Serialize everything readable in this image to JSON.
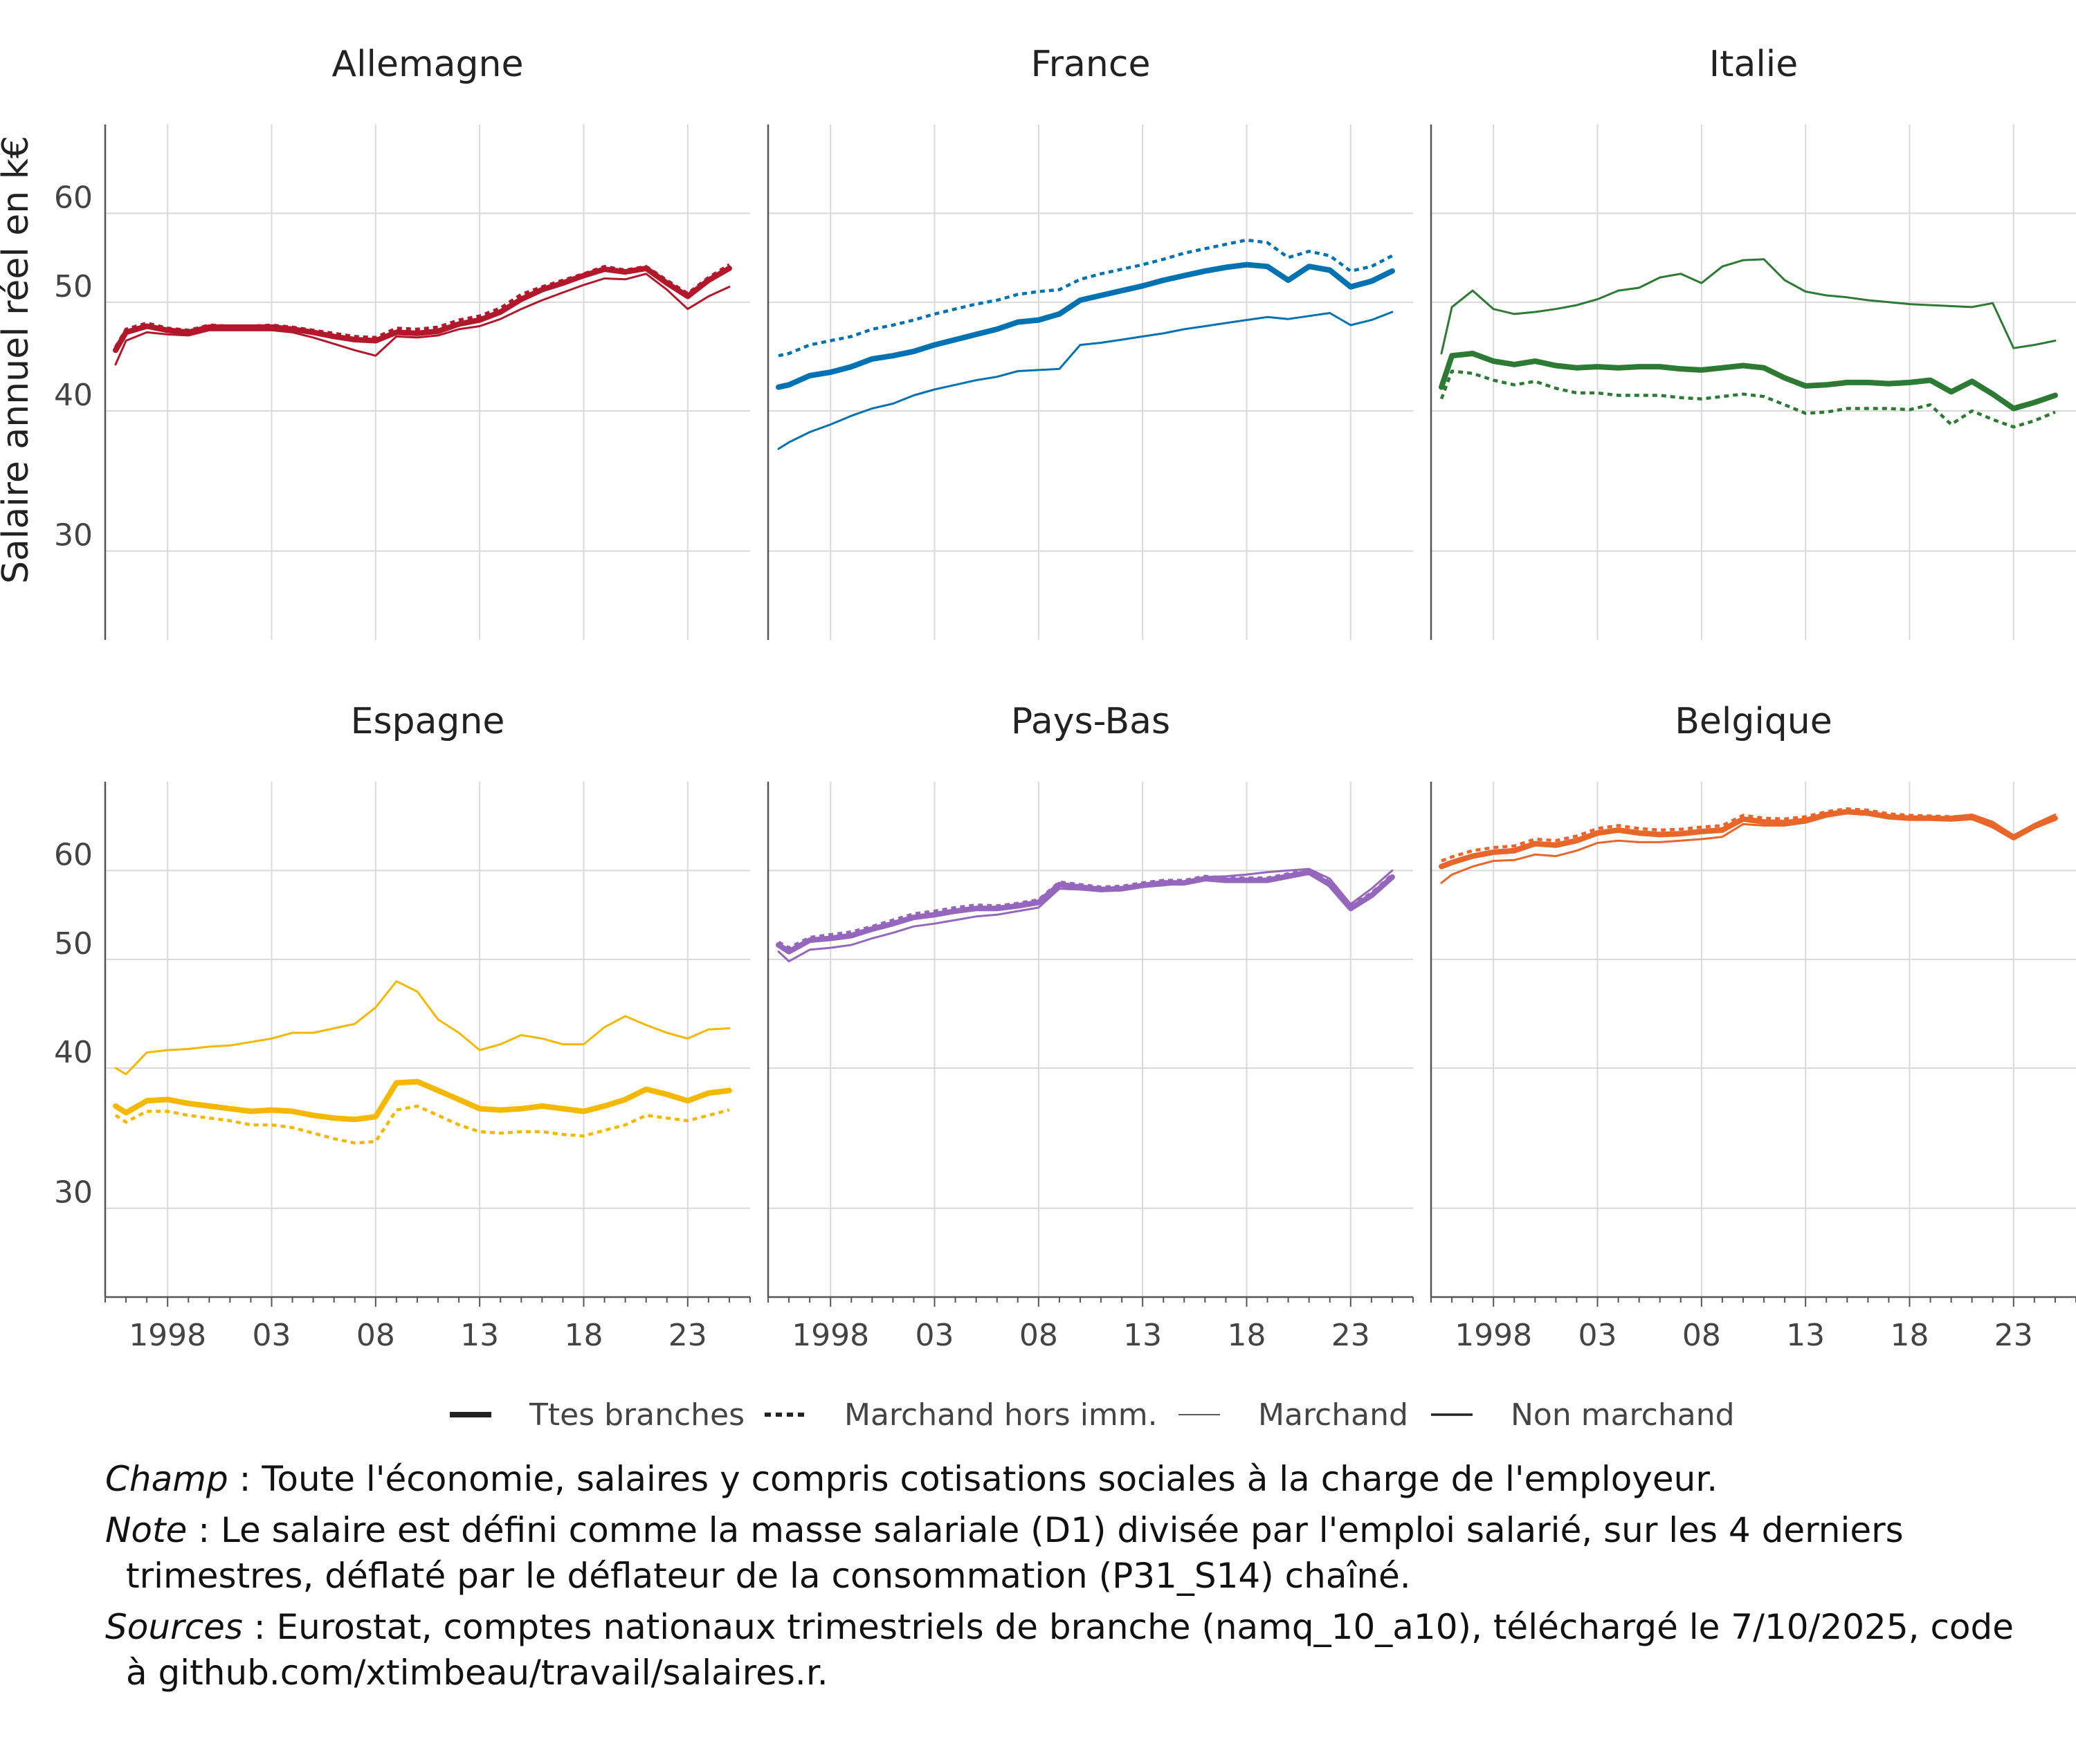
{
  "chart_data": {
    "type": "line",
    "ylabel": "Salaire annuel réel en k€",
    "y_ticks": [
      30,
      40,
      50,
      60
    ],
    "ylim": [
      25,
      72
    ],
    "y_scale": "log",
    "x_range": [
      1995,
      2026
    ],
    "x_ticks": [
      1998,
      2003,
      2008,
      2013,
      2018,
      2023
    ],
    "x_tick_labels": [
      "1998",
      "03",
      "08",
      "13",
      "18",
      "23"
    ],
    "grid": true,
    "legend_position": "bottom",
    "legend": [
      {
        "key": "ttes",
        "label": "Ttes branches"
      },
      {
        "key": "mhi",
        "label": "Marchand hors imm."
      },
      {
        "key": "march",
        "label": "Marchand"
      },
      {
        "key": "nm",
        "label": "Non marchand"
      }
    ],
    "series_x": [
      1995.5,
      1996,
      1997,
      1998,
      1999,
      2000,
      2001,
      2002,
      2003,
      2004,
      2005,
      2006,
      2007,
      2008,
      2009,
      2010,
      2011,
      2012,
      2013,
      2014,
      2015,
      2016,
      2017,
      2018,
      2019,
      2020,
      2021,
      2022,
      2023,
      2024,
      2025
    ],
    "facets": [
      {
        "name": "Allemagne",
        "color": "#b2182b",
        "series": [
          {
            "key": "ttes",
            "values": [
              45.3,
              47.0,
              47.6,
              47.2,
              47.0,
              47.5,
              47.5,
              47.5,
              47.5,
              47.3,
              47.0,
              46.6,
              46.3,
              46.2,
              47.0,
              46.9,
              47.1,
              47.8,
              48.2,
              49.0,
              50.3,
              51.3,
              52.0,
              52.8,
              53.5,
              53.2,
              53.6,
              52.0,
              50.6,
              52.3,
              53.6
            ]
          },
          {
            "key": "mhi",
            "values": [
              45.6,
              47.3,
              47.9,
              47.4,
              47.2,
              47.7,
              47.6,
              47.6,
              47.7,
              47.5,
              47.2,
              46.9,
              46.6,
              46.5,
              47.4,
              47.3,
              47.5,
              48.2,
              48.6,
              49.4,
              50.8,
              51.6,
              52.3,
              53.0,
              53.8,
              53.4,
              53.8,
              52.3,
              50.9,
              52.6,
              54.0
            ]
          },
          {
            "key": "march",
            "values": [
              44.0,
              46.2,
              47.0,
              46.8,
              46.7,
              47.2,
              47.2,
              47.2,
              47.2,
              47.0,
              46.5,
              45.9,
              45.3,
              44.8,
              46.6,
              46.5,
              46.7,
              47.3,
              47.6,
              48.3,
              49.3,
              50.2,
              51.0,
              51.8,
              52.5,
              52.4,
              53.0,
              51.3,
              49.3,
              50.6,
              51.6
            ]
          }
        ]
      },
      {
        "name": "France",
        "color": "#0072b2",
        "series": [
          {
            "key": "ttes",
            "values": [
              42.0,
              42.2,
              43.0,
              43.3,
              43.8,
              44.5,
              44.8,
              45.2,
              45.8,
              46.3,
              46.8,
              47.3,
              48.0,
              48.2,
              48.8,
              50.2,
              50.7,
              51.2,
              51.7,
              52.3,
              52.8,
              53.3,
              53.7,
              54.0,
              53.8,
              52.3,
              53.8,
              53.4,
              51.6,
              52.2,
              53.3
            ]
          },
          {
            "key": "mhi",
            "values": [
              44.8,
              45.0,
              45.8,
              46.2,
              46.6,
              47.3,
              47.7,
              48.2,
              48.8,
              49.3,
              49.8,
              50.2,
              50.8,
              51.1,
              51.3,
              52.4,
              53.0,
              53.5,
              54.0,
              54.6,
              55.3,
              55.8,
              56.3,
              56.8,
              56.5,
              54.8,
              55.5,
              55.0,
              53.3,
              53.8,
              55.0
            ]
          },
          {
            "key": "march",
            "values": [
              37.0,
              37.5,
              38.3,
              38.9,
              39.6,
              40.2,
              40.6,
              41.3,
              41.8,
              42.2,
              42.6,
              42.9,
              43.4,
              43.5,
              43.6,
              45.8,
              46.0,
              46.3,
              46.6,
              46.9,
              47.3,
              47.6,
              47.9,
              48.2,
              48.5,
              48.3,
              48.6,
              48.9,
              47.7,
              48.2,
              49.0
            ]
          }
        ]
      },
      {
        "name": "Italie",
        "color": "#2c7a33",
        "series": [
          {
            "key": "ttes",
            "values": [
              42.0,
              44.8,
              45.0,
              44.3,
              44.0,
              44.3,
              43.9,
              43.7,
              43.8,
              43.7,
              43.8,
              43.8,
              43.6,
              43.5,
              43.7,
              43.9,
              43.7,
              42.8,
              42.1,
              42.2,
              42.4,
              42.4,
              42.3,
              42.4,
              42.6,
              41.6,
              42.5,
              41.4,
              40.2,
              40.7,
              41.3
            ]
          },
          {
            "key": "mhi",
            "values": [
              41.0,
              43.4,
              43.2,
              42.6,
              42.2,
              42.5,
              41.9,
              41.5,
              41.5,
              41.3,
              41.3,
              41.3,
              41.1,
              41.0,
              41.2,
              41.4,
              41.2,
              40.5,
              39.8,
              39.9,
              40.2,
              40.2,
              40.2,
              40.1,
              40.5,
              38.9,
              40.0,
              39.3,
              38.7,
              39.2,
              39.9
            ]
          },
          {
            "key": "march",
            "values": [
              45.0,
              49.5,
              51.2,
              49.3,
              48.8,
              49.0,
              49.3,
              49.7,
              50.3,
              51.2,
              51.5,
              52.6,
              53.0,
              52.0,
              53.8,
              54.5,
              54.6,
              52.3,
              51.1,
              50.7,
              50.5,
              50.2,
              50.0,
              49.8,
              49.7,
              49.6,
              49.5,
              49.9,
              45.5,
              45.8,
              46.2
            ]
          }
        ]
      },
      {
        "name": "Espagne",
        "color": "#f5b800",
        "series": [
          {
            "key": "ttes",
            "values": [
              37.0,
              36.5,
              37.4,
              37.5,
              37.2,
              37.0,
              36.8,
              36.6,
              36.7,
              36.6,
              36.3,
              36.1,
              36.0,
              36.2,
              38.8,
              38.9,
              38.2,
              37.5,
              36.8,
              36.7,
              36.8,
              37.0,
              36.8,
              36.6,
              37.0,
              37.5,
              38.3,
              37.9,
              37.4,
              38.0,
              38.2
            ]
          },
          {
            "key": "mhi",
            "values": [
              36.3,
              35.8,
              36.6,
              36.6,
              36.3,
              36.1,
              35.9,
              35.6,
              35.6,
              35.4,
              35.0,
              34.6,
              34.3,
              34.4,
              36.7,
              37.0,
              36.3,
              35.6,
              35.1,
              35.0,
              35.1,
              35.1,
              34.9,
              34.8,
              35.2,
              35.6,
              36.3,
              36.1,
              35.9,
              36.3,
              36.7
            ]
          },
          {
            "key": "march",
            "values": [
              40.0,
              39.5,
              41.3,
              41.5,
              41.6,
              41.8,
              41.9,
              42.2,
              42.5,
              43.0,
              43.0,
              43.4,
              43.8,
              45.3,
              47.8,
              46.8,
              44.2,
              43.0,
              41.5,
              42.0,
              42.8,
              42.5,
              42.0,
              42.0,
              43.5,
              44.5,
              43.7,
              43.0,
              42.5,
              43.3,
              43.4
            ]
          }
        ]
      },
      {
        "name": "Pays-Bas",
        "color": "#9467bd",
        "series": [
          {
            "key": "ttes",
            "values": [
              51.5,
              50.8,
              52.0,
              52.2,
              52.5,
              53.2,
              53.8,
              54.5,
              54.8,
              55.2,
              55.5,
              55.5,
              55.8,
              56.2,
              58.3,
              58.0,
              57.7,
              57.8,
              58.2,
              58.5,
              58.5,
              59.0,
              58.8,
              58.8,
              58.8,
              59.3,
              59.8,
              58.3,
              55.5,
              57.0,
              59.2
            ]
          },
          {
            "key": "mhi",
            "values": [
              51.8,
              51.2,
              52.3,
              52.6,
              52.9,
              53.5,
              54.2,
              54.9,
              55.2,
              55.6,
              55.9,
              55.8,
              56.1,
              56.5,
              58.6,
              58.3,
              58.0,
              58.1,
              58.5,
              58.8,
              58.8,
              59.3,
              59.1,
              59.1,
              59.1,
              59.6,
              60.1,
              58.6,
              55.8,
              57.3,
              59.5
            ]
          },
          {
            "key": "march",
            "values": [
              50.8,
              49.8,
              51.0,
              51.2,
              51.5,
              52.2,
              52.8,
              53.5,
              53.8,
              54.2,
              54.6,
              54.8,
              55.2,
              55.6,
              57.8,
              57.7,
              57.5,
              57.8,
              58.0,
              58.2,
              58.5,
              59.2,
              59.3,
              59.5,
              59.8,
              60.0,
              60.2,
              59.0,
              56.0,
              57.8,
              60.0
            ]
          }
        ]
      },
      {
        "name": "Belgique",
        "color": "#e8662a",
        "series": [
          {
            "key": "ttes",
            "values": [
              60.5,
              61.0,
              61.8,
              62.3,
              62.5,
              63.4,
              63.2,
              63.8,
              64.8,
              65.2,
              64.8,
              64.6,
              64.7,
              65.0,
              65.2,
              66.7,
              66.3,
              66.2,
              66.5,
              67.3,
              67.7,
              67.5,
              67.0,
              66.8,
              66.8,
              66.7,
              66.9,
              65.8,
              64.2,
              65.7,
              66.8
            ]
          },
          {
            "key": "mhi",
            "values": [
              61.2,
              61.7,
              62.5,
              62.9,
              63.1,
              64.0,
              63.8,
              64.4,
              65.4,
              65.8,
              65.4,
              65.2,
              65.3,
              65.6,
              65.8,
              67.2,
              66.8,
              66.7,
              67.0,
              67.7,
              68.1,
              67.9,
              67.4,
              67.2,
              67.1,
              67.0,
              67.1,
              66.1,
              64.4,
              65.9,
              67.0
            ]
          },
          {
            "key": "march",
            "values": [
              58.5,
              59.5,
              60.5,
              61.2,
              61.3,
              62.0,
              61.8,
              62.5,
              63.5,
              63.8,
              63.6,
              63.6,
              63.8,
              64.0,
              64.3,
              66.0,
              65.8,
              65.8,
              66.2,
              67.0,
              67.5,
              67.4,
              67.0,
              66.8,
              66.8,
              67.0,
              67.3,
              66.3,
              64.5,
              66.0,
              67.3
            ]
          }
        ]
      }
    ]
  },
  "notes": [
    {
      "label": "Champ",
      "text": " : Toute l'économie, salaires y compris cotisations sociales à la charge de l'employeur."
    },
    {
      "label": "Note",
      "text": " : Le salaire est défini comme la masse salariale (D1) divisée par l'emploi salarié, sur les 4 derniers trimestres, déflaté par le déflateur de la consommation (P31_S14) chaîné."
    },
    {
      "label": "Sources",
      "text": " : Eurostat, comptes nationaux trimestriels de branche (namq_10_a10), téléchargé le 7/10/2025, code à github.com/xtimbeau/travail/salaires.r."
    }
  ]
}
